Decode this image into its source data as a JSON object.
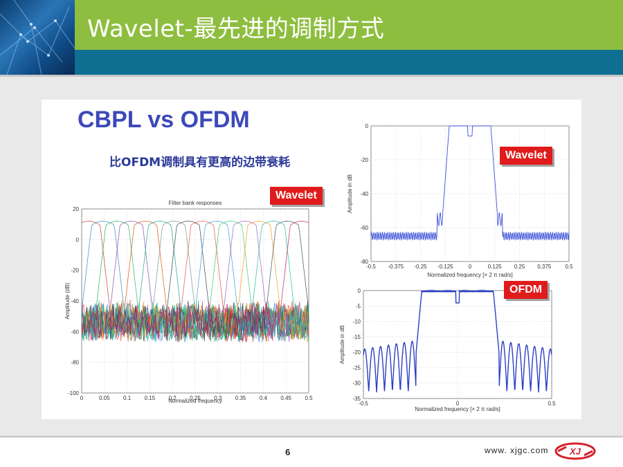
{
  "slide": {
    "title": "Wavelet-最先进的调制方式",
    "heading": "CBPL vs OFDM",
    "subtitle": "比OFDM调制具有更高的边带衰耗",
    "page_number": "6",
    "website": "www. xjgc.com",
    "logo_text": "XJ"
  },
  "colors": {
    "title_band": "#8ebe3f",
    "blue_band": "#0f6f93",
    "heading": "#3c49b8",
    "tag": "#e01b1b"
  },
  "chart_data": [
    {
      "type": "line",
      "title": "Filter bank responses",
      "xlabel": "Normalized frequency",
      "ylabel": "Amplitude (dB)",
      "tag": "Wavelet",
      "xlim": [
        0,
        0.5
      ],
      "ylim": [
        -100,
        20
      ],
      "x_ticks": [
        "0",
        "0.05",
        "0.1",
        "0.15",
        "0.2",
        "0.25",
        "0.3",
        "0.35",
        "0.4",
        "0.45",
        "0.5"
      ],
      "y_ticks": [
        "20",
        "0",
        "-20",
        "-40",
        "-60",
        "-80",
        "-100"
      ],
      "y_tick_values": [
        20,
        0,
        -20,
        -40,
        -60,
        -80,
        -100
      ],
      "band_count": 16,
      "passband_level": 12,
      "sidelobe_level": -50
    },
    {
      "type": "line",
      "xlabel": "Normalized frequency [× 2 π rad/s]",
      "ylabel": "Amplitude in dB",
      "tag": "Wavelet",
      "xlim": [
        -0.5,
        0.5
      ],
      "ylim": [
        -80,
        0
      ],
      "x_ticks": [
        "-0.5",
        "-0.375",
        "-0.25",
        "-0.125",
        "0",
        "0.125",
        "0.25",
        "0.375",
        "0.5"
      ],
      "y_ticks": [
        "0",
        "-20",
        "-40",
        "-60",
        "-80"
      ],
      "y_tick_values": [
        0,
        -20,
        -40,
        -60,
        -80
      ],
      "passband": [
        -0.125,
        0.125
      ],
      "passband_level": 0,
      "stopband_level": -65
    },
    {
      "type": "line",
      "xlabel": "Normalized frequency [× 2 π rad/s]",
      "ylabel": "Amplitude in dB",
      "tag": "OFDM",
      "xlim": [
        -0.5,
        0.5
      ],
      "ylim": [
        -35,
        0
      ],
      "x_ticks": [
        "-0.5",
        "0",
        "0.5"
      ],
      "y_ticks": [
        "0",
        "-5",
        "-10",
        "-15",
        "-20",
        "-25",
        "-30",
        "-35"
      ],
      "y_tick_values": [
        0,
        -5,
        -10,
        -15,
        -20,
        -25,
        -30,
        -35
      ],
      "passband": [
        -0.2,
        0.2
      ],
      "passband_level": 0,
      "sidelobe_peak_level": -16
    }
  ]
}
